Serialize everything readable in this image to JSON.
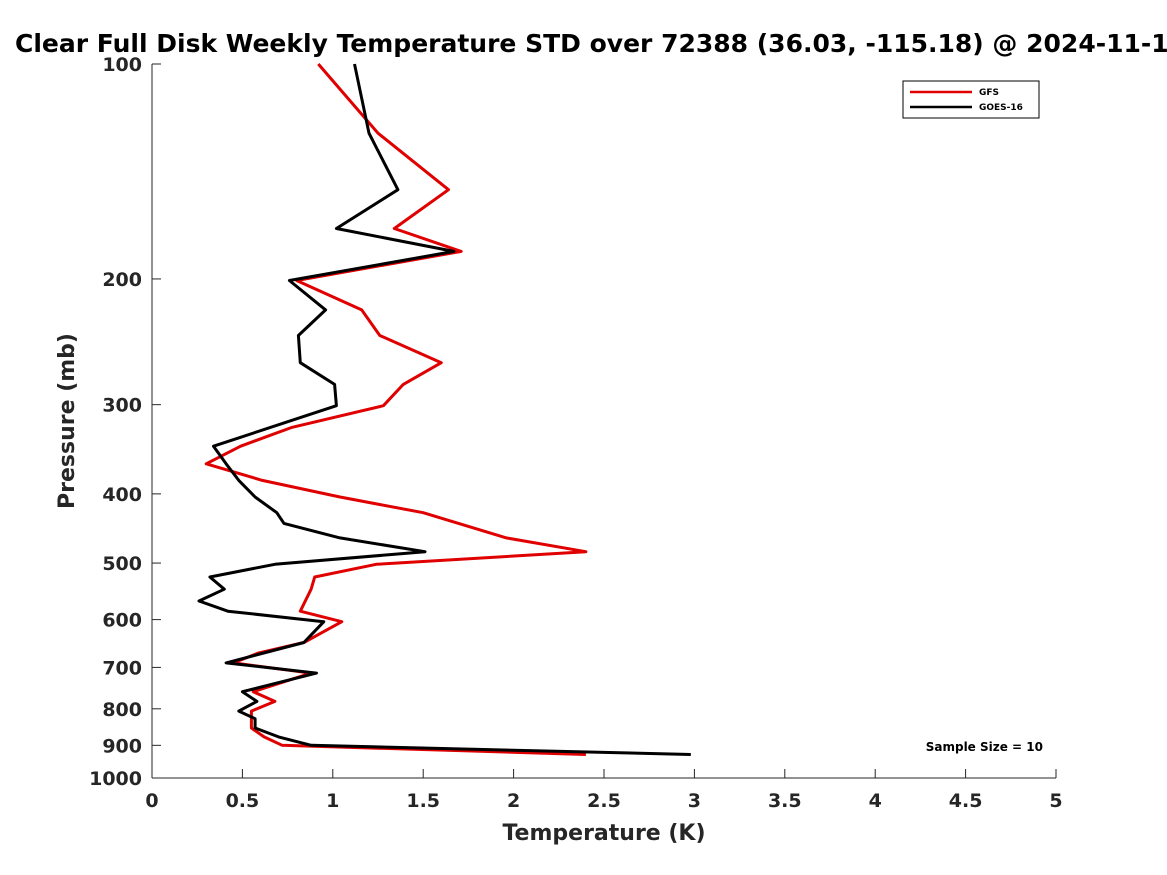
{
  "chart_data": {
    "type": "line",
    "title": "Clear Full Disk Weekly Temperature STD over 72388 (36.03, -115.18) @ 2024-11-1",
    "xlabel": "Temperature (K)",
    "ylabel": "Pressure (mb)",
    "xlim": [
      0,
      5
    ],
    "ylim": [
      1000,
      100
    ],
    "y_scale": "log",
    "x_ticks": [
      0,
      0.5,
      1,
      1.5,
      2,
      2.5,
      3,
      3.5,
      4,
      4.5,
      5
    ],
    "x_tick_labels": [
      "0",
      "0.5",
      "1",
      "1.5",
      "2",
      "2.5",
      "3",
      "3.5",
      "4",
      "4.5",
      "5"
    ],
    "y_ticks": [
      100,
      200,
      300,
      400,
      500,
      600,
      700,
      800,
      900,
      1000
    ],
    "y_tick_labels": [
      "100",
      "200",
      "300",
      "400",
      "500",
      "600",
      "700",
      "800",
      "900",
      "1000"
    ],
    "grid": false,
    "legend_position": "top-right",
    "annotation": "Sample Size = 10",
    "series": [
      {
        "name": "GFS",
        "color": "#e00000",
        "points": [
          [
            0.92,
            100
          ],
          [
            1.25,
            125
          ],
          [
            1.64,
            150
          ],
          [
            1.34,
            170
          ],
          [
            1.71,
            183
          ],
          [
            0.8,
            201
          ],
          [
            1.16,
            221
          ],
          [
            1.26,
            240
          ],
          [
            1.6,
            262
          ],
          [
            1.39,
            281
          ],
          [
            1.28,
            301
          ],
          [
            0.77,
            323
          ],
          [
            0.49,
            343
          ],
          [
            0.3,
            363
          ],
          [
            0.61,
            383
          ],
          [
            1.04,
            404
          ],
          [
            1.5,
            425
          ],
          [
            1.96,
            461
          ],
          [
            2.4,
            482
          ],
          [
            1.24,
            502
          ],
          [
            0.9,
            523
          ],
          [
            0.88,
            544
          ],
          [
            0.82,
            584
          ],
          [
            1.05,
            604
          ],
          [
            0.84,
            646
          ],
          [
            0.59,
            668
          ],
          [
            0.45,
            690
          ],
          [
            0.88,
            713
          ],
          [
            0.56,
            757
          ],
          [
            0.68,
            781
          ],
          [
            0.55,
            806
          ],
          [
            0.55,
            851
          ],
          [
            0.62,
            876
          ],
          [
            0.72,
            900
          ],
          [
            2.4,
            927
          ]
        ]
      },
      {
        "name": "GOES-16",
        "color": "#000000",
        "points": [
          [
            1.12,
            100
          ],
          [
            1.2,
            125
          ],
          [
            1.36,
            150
          ],
          [
            1.02,
            170
          ],
          [
            1.67,
            183
          ],
          [
            0.76,
            201
          ],
          [
            0.96,
            221
          ],
          [
            0.81,
            240
          ],
          [
            0.82,
            262
          ],
          [
            1.01,
            281
          ],
          [
            1.02,
            301
          ],
          [
            0.34,
            343
          ],
          [
            0.41,
            363
          ],
          [
            0.48,
            383
          ],
          [
            0.57,
            404
          ],
          [
            0.69,
            425
          ],
          [
            0.73,
            440
          ],
          [
            1.04,
            461
          ],
          [
            1.51,
            482
          ],
          [
            0.68,
            502
          ],
          [
            0.32,
            523
          ],
          [
            0.4,
            544
          ],
          [
            0.26,
            565
          ],
          [
            0.42,
            584
          ],
          [
            0.95,
            604
          ],
          [
            0.84,
            646
          ],
          [
            0.41,
            690
          ],
          [
            0.91,
            713
          ],
          [
            0.5,
            757
          ],
          [
            0.58,
            781
          ],
          [
            0.48,
            806
          ],
          [
            0.57,
            826
          ],
          [
            0.57,
            851
          ],
          [
            0.7,
            876
          ],
          [
            0.88,
            900
          ],
          [
            2.98,
            927
          ]
        ]
      }
    ]
  }
}
